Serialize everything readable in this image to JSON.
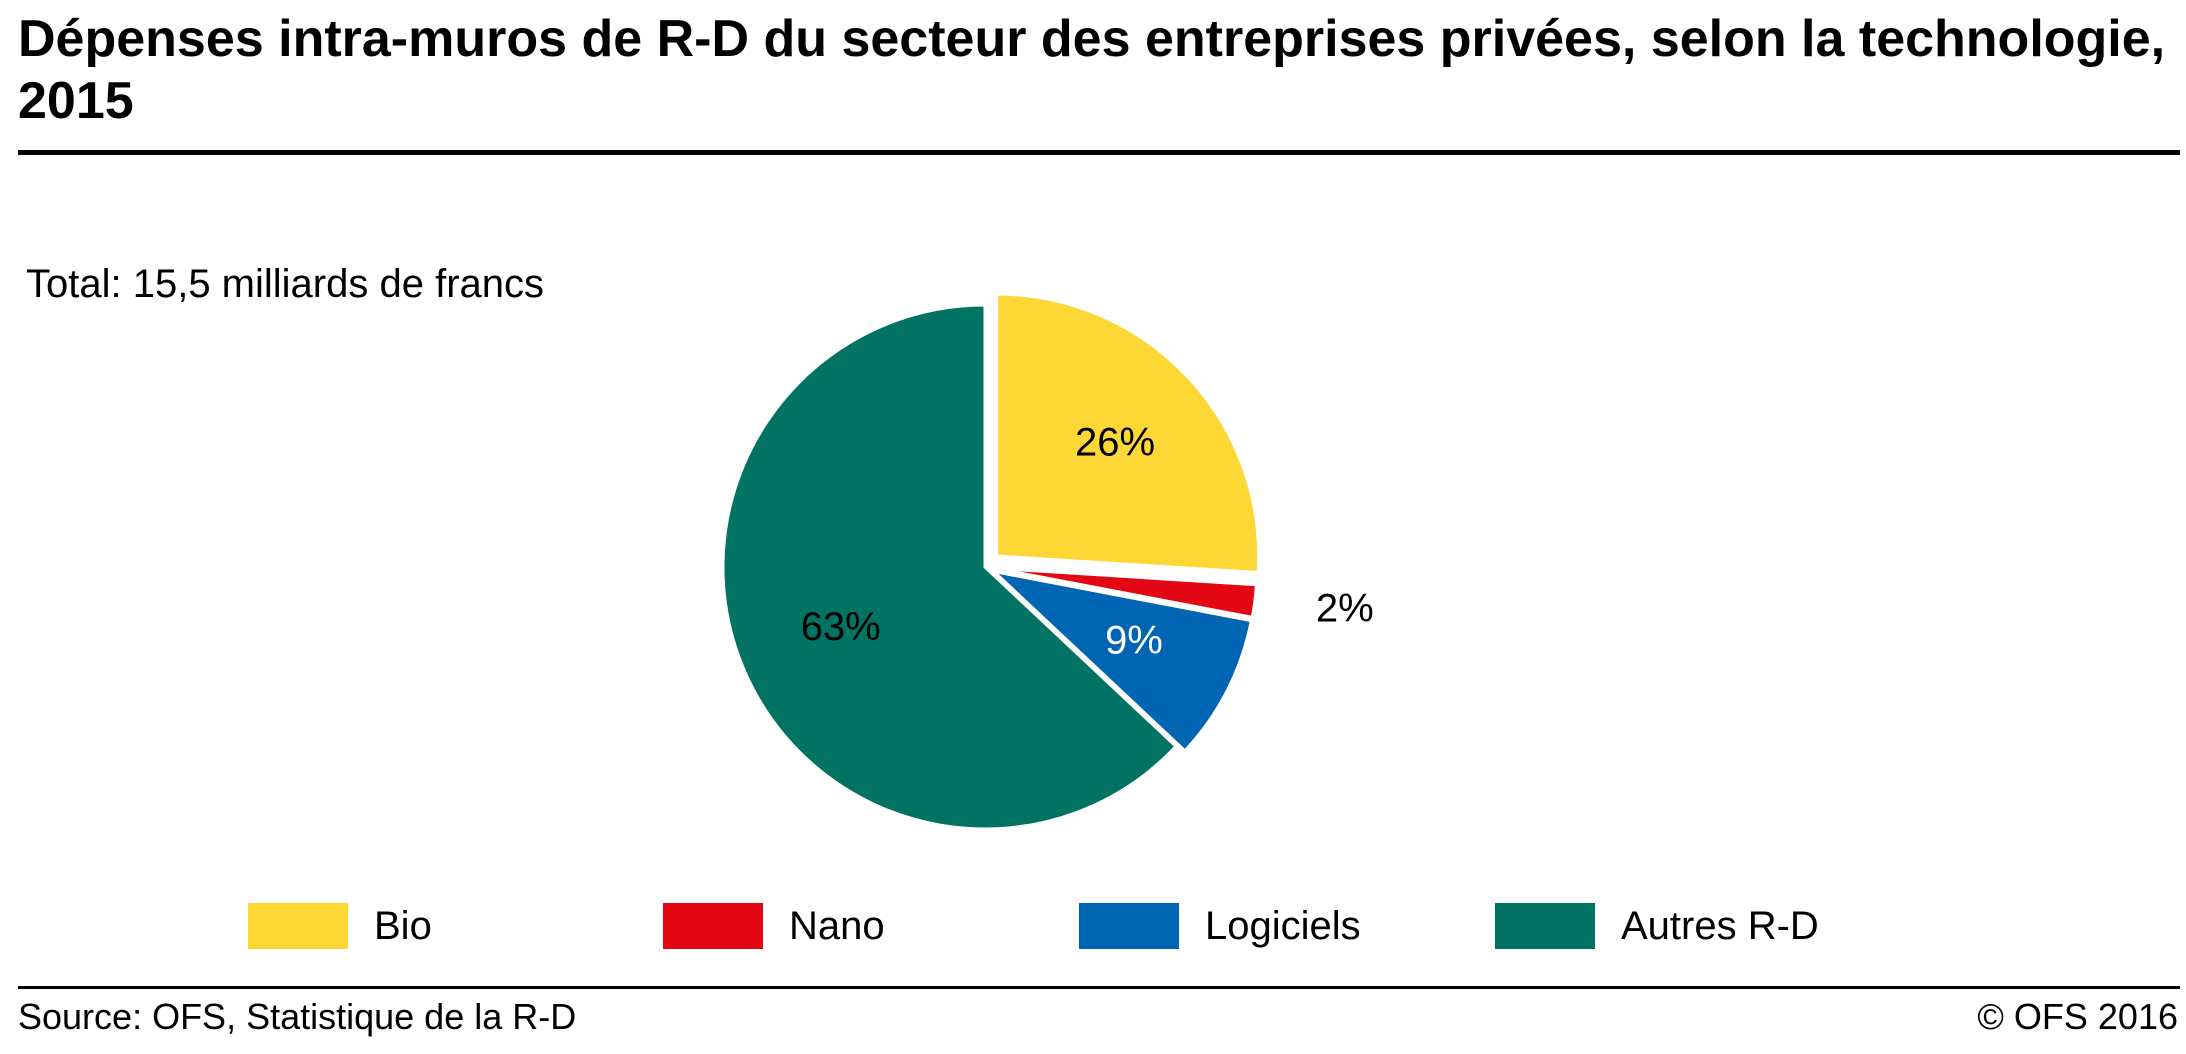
{
  "header": {
    "title": "Dépenses intra-muros de R-D du secteur des entreprises privées, selon la technologie, 2015",
    "subtitle": "Total: 15,5 milliards de francs"
  },
  "chart_data": {
    "type": "pie",
    "title": "Dépenses intra-muros de R-D du secteur des entreprises privées, selon la technologie, 2015",
    "subtitle": "Total: 15,5 milliards de francs",
    "categories": [
      "Bio",
      "Nano",
      "Logiciels",
      "Autres R-D"
    ],
    "values": [
      26,
      2,
      9,
      63
    ],
    "labels": [
      "26%",
      "2%",
      "9%",
      "63%"
    ],
    "colors": [
      "#FDD835",
      "#E30613",
      "#0066B3",
      "#007363"
    ],
    "label_colors": [
      "#000000",
      "#000000",
      "#ffffff",
      "#000000"
    ],
    "legend_position": "bottom"
  },
  "legend": [
    {
      "label": "Bio",
      "color": "#FDD835"
    },
    {
      "label": "Nano",
      "color": "#E30613"
    },
    {
      "label": "Logiciels",
      "color": "#0066B3"
    },
    {
      "label": "Autres R-D",
      "color": "#007363"
    }
  ],
  "footer": {
    "source": "Source: OFS, Statistique de la R-D",
    "copyright": "© OFS 2016"
  }
}
